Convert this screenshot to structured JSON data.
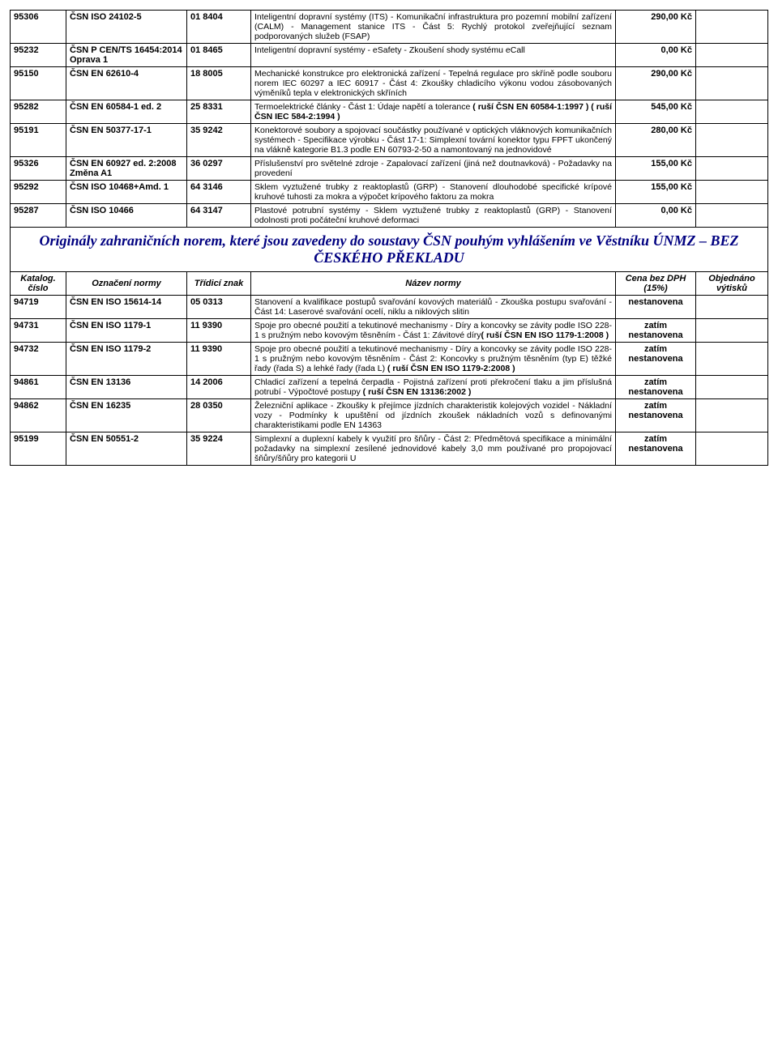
{
  "rows1": [
    {
      "cat": "95306",
      "desig": "ČSN ISO 24102-5",
      "class": "01 8404",
      "name": "Inteligentní dopravní systémy (ITS) - Komunikační infrastruktura pro pozemní mobilní zařízení (CALM) - Management stanice ITS - Část 5: Rychlý protokol zveřejňující seznam podporovaných služeb (FSAP)",
      "price": "290,00 Kč"
    },
    {
      "cat": "95232",
      "desig": "ČSN P CEN/TS 16454:2014 Oprava 1",
      "class": "01 8465",
      "name": "Inteligentní dopravní systémy - eSafety - Zkoušení shody systému eCall",
      "price": "0,00 Kč"
    },
    {
      "cat": "95150",
      "desig": "ČSN EN 62610-4",
      "class": "18 8005",
      "name": "Mechanické konstrukce pro elektronická zařízení - Tepelná regulace pro skříně podle souboru norem IEC 60297 a IEC 60917 - Část 4: Zkoušky chladicího výkonu vodou zásobovaných výměníků tepla v elektronických skříních",
      "price": "290,00 Kč"
    },
    {
      "cat": "95282",
      "desig": "ČSN EN 60584-1 ed. 2",
      "class": "25 8331",
      "name": "Termoelektrické články - Část 1: Údaje napětí a tolerance <b>( ruší ČSN EN 60584-1:1997 ) ( ruší ČSN IEC 584-2:1994 )</b>",
      "price": "545,00 Kč"
    },
    {
      "cat": "95191",
      "desig": "ČSN EN 50377-17-1",
      "class": "35 9242",
      "name": "Konektorové soubory a spojovací součástky používané v optických vláknových komunikačních systémech - Specifikace výrobku - Část 17-1: Simplexní tovární konektor typu FPFT ukončený na vlákně kategorie B1.3 podle EN 60793-2-50 a namontovaný na jednovidové",
      "price": "280,00 Kč"
    },
    {
      "cat": "95326",
      "desig": "ČSN EN 60927 ed. 2:2008 Změna A1",
      "class": "36 0297",
      "name": "Příslušenství pro světelné zdroje - Zapalovací zařízení (jiná než doutnavková) - Požadavky na provedení",
      "price": "155,00 Kč"
    },
    {
      "cat": "95292",
      "desig": "ČSN ISO 10468+Amd. 1",
      "class": "64 3146",
      "name": "Sklem vyztužené trubky z reaktoplastů (GRP) - Stanovení dlouhodobé specifické krípové kruhové tuhosti za mokra a výpočet krípového faktoru za mokra",
      "price": "155,00 Kč"
    },
    {
      "cat": "95287",
      "desig": "ČSN ISO 10466",
      "class": "64 3147",
      "name": "Plastové potrubní systémy - Sklem vyztužené trubky z reaktoplastů (GRP) - Stanovení odolnosti proti počáteční kruhové deformaci",
      "price": "0,00 Kč"
    }
  ],
  "section_title": "Originály zahraničních norem, které jsou zavedeny do soustavy ČSN pouhým vyhlášením ve Věstníku ÚNMZ – BEZ ČESKÉHO PŘEKLADU",
  "headers": {
    "cat": "Katalog. číslo",
    "desig": "Označení normy",
    "class": "Třídicí znak",
    "name": "Název normy",
    "price": "Cena bez DPH (15%)",
    "ord": "Objednáno výtisků"
  },
  "rows2": [
    {
      "cat": "94719",
      "desig": "ČSN EN ISO 15614-14",
      "class": "05 0313",
      "name": "Stanovení a kvalifikace postupů svařování kovových materiálů - Zkouška postupu svařování - Část 14: Laserové svařování ocelí, niklu a niklových slitin",
      "price": "nestanovena"
    },
    {
      "cat": "94731",
      "desig": "ČSN EN ISO 1179-1",
      "class": "11 9390",
      "name": "Spoje pro obecné použití a tekutinové mechanismy - Díry a koncovky se závity podle ISO 228-1 s pružným nebo kovovým těsněním - Část 1: Závitové díry<b>( ruší ČSN EN ISO 1179-1:2008 )</b>",
      "price": "zatím nestanovena"
    },
    {
      "cat": "94732",
      "desig": "ČSN EN ISO 1179-2",
      "class": "11 9390",
      "name": "Spoje pro obecné použití a tekutinové mechanismy - Díry a koncovky se závity podle ISO 228-1 s pružným nebo kovovým těsněním - Část 2: Koncovky s pružným těsněním (typ E) těžké řady (řada S) a lehké řady (řada L) <b>( ruší ČSN EN ISO 1179-2:2008 )</b>",
      "price": "zatím nestanovena"
    },
    {
      "cat": "94861",
      "desig": "ČSN EN 13136",
      "class": "14 2006",
      "name": "Chladicí zařízení a tepelná čerpadla - Pojistná zařízení proti překročení tlaku a jim příslušná potrubí - Výpočtové postupy <b>( ruší ČSN EN 13136:2002 )</b>",
      "price": "zatím nestanovena"
    },
    {
      "cat": "94862",
      "desig": "ČSN EN 16235",
      "class": "28 0350",
      "name": "Železniční aplikace - Zkoušky k přejímce jízdních charakteristik kolejových vozidel - Nákladní vozy - Podmínky k upuštění od jízdních zkoušek nákladních vozů s definovanými charakteristikami podle EN 14363",
      "price": "zatím nestanovena"
    },
    {
      "cat": "95199",
      "desig": "ČSN EN 50551-2",
      "class": "35 9224",
      "name": "Simplexní a duplexní kabely k využití pro šňůry - Část 2: Předmětová specifikace a minimální požadavky na simplexní zesílené jednovidové kabely 3,0 mm používané pro propojovací šňůry/šňůry pro kategorii U",
      "price": "zatím nestanovena"
    }
  ]
}
